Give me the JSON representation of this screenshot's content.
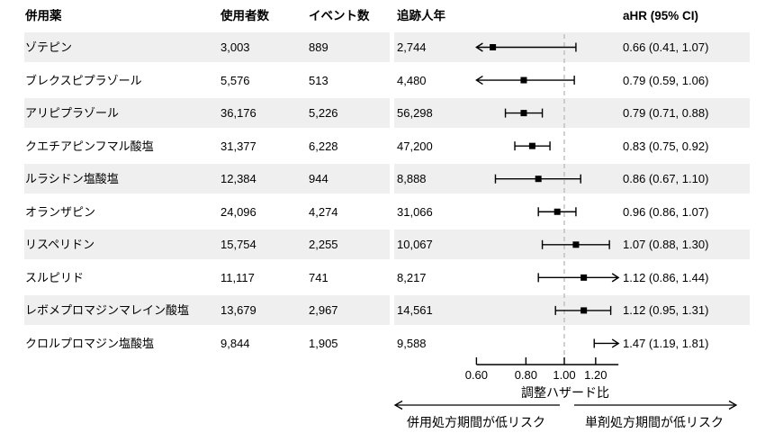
{
  "table": {
    "headers": {
      "drug": "併用薬",
      "users": "使用者数",
      "events": "イベント数",
      "person_years": "追跡人年",
      "ahr": "aHR (95% CI)"
    }
  },
  "chart_data": {
    "type": "forest",
    "xlabel": "調整ハザード比",
    "scale": "log10",
    "xlim": [
      0.6,
      1.37
    ],
    "ref_line": 1.0,
    "tick_values": [
      0.6,
      0.8,
      1.0,
      1.2
    ],
    "tick_labels": [
      "0.60",
      "0.80",
      "1.00",
      "1.20"
    ],
    "legend_position": "none",
    "grid": false,
    "rows": [
      {
        "drug": "ゾテピン",
        "users": "3,003",
        "events": "889",
        "person_years": "2,744",
        "est": 0.66,
        "lo": 0.41,
        "hi": 1.07,
        "ahr_text": "0.66 (0.41, 1.07)"
      },
      {
        "drug": "ブレクスピプラゾール",
        "users": "5,576",
        "events": "513",
        "person_years": "4,480",
        "est": 0.79,
        "lo": 0.59,
        "hi": 1.06,
        "ahr_text": "0.79 (0.59, 1.06)"
      },
      {
        "drug": "アリピプラゾール",
        "users": "36,176",
        "events": "5,226",
        "person_years": "56,298",
        "est": 0.79,
        "lo": 0.71,
        "hi": 0.88,
        "ahr_text": "0.79 (0.71, 0.88)"
      },
      {
        "drug": "クエチアピンフマル酸塩",
        "users": "31,377",
        "events": "6,228",
        "person_years": "47,200",
        "est": 0.83,
        "lo": 0.75,
        "hi": 0.92,
        "ahr_text": "0.83 (0.75, 0.92)"
      },
      {
        "drug": "ルラシドン塩酸塩",
        "users": "12,384",
        "events": "944",
        "person_years": "8,888",
        "est": 0.86,
        "lo": 0.67,
        "hi": 1.1,
        "ahr_text": "0.86 (0.67, 1.10)"
      },
      {
        "drug": "オランザピン",
        "users": "24,096",
        "events": "4,274",
        "person_years": "31,066",
        "est": 0.96,
        "lo": 0.86,
        "hi": 1.07,
        "ahr_text": "0.96 (0.86, 1.07)"
      },
      {
        "drug": "リスペリドン",
        "users": "15,754",
        "events": "2,255",
        "person_years": "10,067",
        "est": 1.07,
        "lo": 0.88,
        "hi": 1.3,
        "ahr_text": "1.07 (0.88, 1.30)"
      },
      {
        "drug": "スルピリド",
        "users": "11,117",
        "events": "741",
        "person_years": "8,217",
        "est": 1.12,
        "lo": 0.86,
        "hi": 1.44,
        "ahr_text": "1.12 (0.86, 1.44)"
      },
      {
        "drug": "レボメプロマジンマレイン酸塩",
        "users": "13,679",
        "events": "2,967",
        "person_years": "14,561",
        "est": 1.12,
        "lo": 0.95,
        "hi": 1.31,
        "ahr_text": "1.12 (0.95, 1.31)"
      },
      {
        "drug": "クロルプロマジン塩酸塩",
        "users": "9,844",
        "events": "1,905",
        "person_years": "9,588",
        "est": 1.47,
        "lo": 1.19,
        "hi": 1.81,
        "ahr_text": "1.47 (1.19, 1.81)"
      }
    ],
    "direction_labels": {
      "left": "併用処方期間が低リスク",
      "right": "単剤処方期間が低リスク"
    }
  },
  "colors": {
    "stripe": "#efefef",
    "marker": "#000000",
    "ref_line": "#bdbdbd",
    "text": "#000000"
  }
}
